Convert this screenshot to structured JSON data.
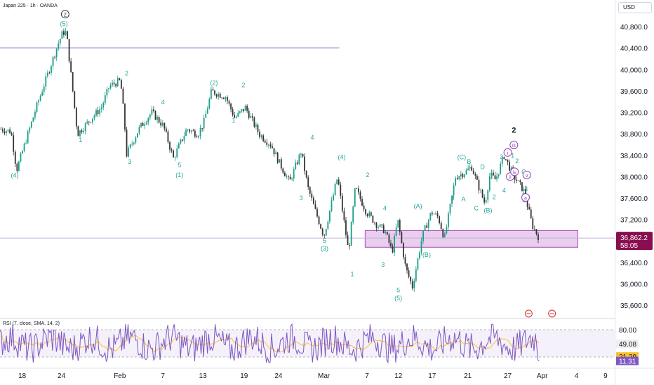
{
  "header": {
    "symbol_title": "Japan 225 · 1h · OANDA",
    "currency": "USD"
  },
  "rsi_header": {
    "title": "RSI (7, close, SMA, 14, 2)"
  },
  "chart_data": [
    {
      "type": "candlestick",
      "ylim": [
        35400,
        41200
      ],
      "price_ticks": [
        "40,800.0",
        "40,400.0",
        "40,000.0",
        "39,600.0",
        "39,200.0",
        "38,800.0",
        "38,400.0",
        "38,000.0",
        "37,600.0",
        "37,200.0",
        "36,400.0",
        "36,000.0",
        "35,600.0"
      ],
      "price_tick_values": [
        40800,
        40400,
        40000,
        39600,
        39200,
        38800,
        38400,
        38000,
        37600,
        37200,
        36400,
        36000,
        35600
      ],
      "time_labels": [
        "18",
        "24",
        "Feb",
        "7",
        "13",
        "19",
        "24",
        "Mar",
        "7",
        "12",
        "17",
        "21",
        "27",
        "Apr",
        "4",
        "9"
      ],
      "last_price": {
        "label": "36,862.2",
        "value": 36862.2,
        "countdown": "58:05"
      },
      "resistance_line": 40410,
      "demand_zone": [
        36690,
        37000
      ],
      "price_path": [
        [
          0,
          38900
        ],
        [
          0.018,
          38850
        ],
        [
          0.027,
          38130
        ],
        [
          0.059,
          39300
        ],
        [
          0.086,
          40200
        ],
        [
          0.095,
          40500
        ],
        [
          0.102,
          40700
        ],
        [
          0.108,
          40700
        ],
        [
          0.126,
          38800
        ],
        [
          0.149,
          39100
        ],
        [
          0.165,
          39300
        ],
        [
          0.178,
          39700
        ],
        [
          0.196,
          39800
        ],
        [
          0.202,
          39100
        ],
        [
          0.206,
          38420
        ],
        [
          0.226,
          38900
        ],
        [
          0.247,
          39210
        ],
        [
          0.266,
          38950
        ],
        [
          0.282,
          38350
        ],
        [
          0.304,
          38900
        ],
        [
          0.322,
          38800
        ],
        [
          0.331,
          39000
        ],
        [
          0.344,
          39600
        ],
        [
          0.367,
          39500
        ],
        [
          0.382,
          39100
        ],
        [
          0.399,
          39300
        ],
        [
          0.422,
          38800
        ],
        [
          0.441,
          38600
        ],
        [
          0.453,
          38300
        ],
        [
          0.471,
          37900
        ],
        [
          0.49,
          38480
        ],
        [
          0.501,
          37800
        ],
        [
          0.512,
          37400
        ],
        [
          0.527,
          36900
        ],
        [
          0.549,
          38000
        ],
        [
          0.567,
          36600
        ],
        [
          0.578,
          37800
        ],
        [
          0.596,
          37350
        ],
        [
          0.614,
          37100
        ],
        [
          0.626,
          37000
        ],
        [
          0.638,
          36600
        ],
        [
          0.647,
          37200
        ],
        [
          0.66,
          36300
        ],
        [
          0.671,
          35950
        ],
        [
          0.687,
          36900
        ],
        [
          0.702,
          37350
        ],
        [
          0.713,
          37250
        ],
        [
          0.723,
          36850
        ],
        [
          0.741,
          38000
        ],
        [
          0.758,
          38100
        ],
        [
          0.767,
          38200
        ],
        [
          0.776,
          37900
        ],
        [
          0.789,
          37500
        ],
        [
          0.797,
          38050
        ],
        [
          0.806,
          37950
        ],
        [
          0.82,
          38400
        ],
        [
          0.828,
          38200
        ],
        [
          0.836,
          38010
        ],
        [
          0.852,
          37750
        ],
        [
          0.866,
          37100
        ],
        [
          0.877,
          36860
        ]
      ],
      "wave_labels": [
        {
          "text": "Z",
          "t": 0.106,
          "p": 41000,
          "circled": true
        },
        {
          "text": "(5)",
          "t": 0.104,
          "p": 40820
        },
        {
          "text": "(4)",
          "t": 0.024,
          "p": 37990
        },
        {
          "text": "1",
          "t": 0.131,
          "p": 38650
        },
        {
          "text": "2",
          "t": 0.206,
          "p": 39900
        },
        {
          "text": "3",
          "t": 0.211,
          "p": 38250
        },
        {
          "text": "4",
          "t": 0.265,
          "p": 39360
        },
        {
          "text": "5",
          "t": 0.292,
          "p": 38180
        },
        {
          "text": "(1)",
          "t": 0.292,
          "p": 38000
        },
        {
          "text": "(2)",
          "t": 0.348,
          "p": 39720
        },
        {
          "text": "2",
          "t": 0.396,
          "p": 39680
        },
        {
          "text": "1",
          "t": 0.38,
          "p": 39020
        },
        {
          "text": "4",
          "t": 0.508,
          "p": 38700
        },
        {
          "text": "3",
          "t": 0.49,
          "p": 37570
        },
        {
          "text": "(4)",
          "t": 0.556,
          "p": 38330
        },
        {
          "text": "5",
          "t": 0.528,
          "p": 36770
        },
        {
          "text": "(3)",
          "t": 0.528,
          "p": 36630
        },
        {
          "text": "2",
          "t": 0.598,
          "p": 38000
        },
        {
          "text": "1",
          "t": 0.573,
          "p": 36150
        },
        {
          "text": "4",
          "t": 0.626,
          "p": 37380
        },
        {
          "text": "3",
          "t": 0.623,
          "p": 36330
        },
        {
          "text": "(A)",
          "t": 0.68,
          "p": 37420
        },
        {
          "text": "5",
          "t": 0.648,
          "p": 35850
        },
        {
          "text": "(5)",
          "t": 0.648,
          "p": 35700
        },
        {
          "text": "(B)",
          "t": 0.694,
          "p": 36510
        },
        {
          "text": "(C)",
          "t": 0.751,
          "p": 38330
        },
        {
          "text": "B",
          "t": 0.763,
          "p": 38250
        },
        {
          "text": "D",
          "t": 0.785,
          "p": 38150
        },
        {
          "text": "1",
          "t": 0.8,
          "p": 37980
        },
        {
          "text": "3",
          "t": 0.816,
          "p": 38340
        },
        {
          "text": "4",
          "t": 0.736,
          "p": 37560
        },
        {
          "text": "A",
          "t": 0.754,
          "p": 37550
        },
        {
          "text": "C",
          "t": 0.775,
          "p": 37380
        },
        {
          "text": "2",
          "t": 0.804,
          "p": 37590
        },
        {
          "text": "(B)",
          "t": 0.794,
          "p": 37340
        },
        {
          "text": "4",
          "t": 0.82,
          "p": 37710
        },
        {
          "text": "2",
          "t": 0.836,
          "p": 38830,
          "bold": true
        },
        {
          "text": "iii",
          "t": 0.836,
          "p": 38560,
          "circled": true
        },
        {
          "text": "i",
          "t": 0.826,
          "p": 38420,
          "circled": true
        },
        {
          "text": "ii",
          "t": 0.83,
          "p": 37970,
          "circled": true
        },
        {
          "text": "iv",
          "t": 0.837,
          "p": 38060,
          "circled": true
        },
        {
          "text": "1",
          "t": 0.834,
          "p": 38360
        },
        {
          "text": "2",
          "t": 0.841,
          "p": 38260
        },
        {
          "text": "C",
          "t": 0.852,
          "p": 38060
        },
        {
          "text": "B",
          "t": 0.856,
          "p": 37970
        },
        {
          "text": "v",
          "t": 0.857,
          "p": 38000,
          "circled": true
        },
        {
          "text": "3",
          "t": 0.852,
          "p": 37620
        },
        {
          "text": "4",
          "t": 0.856,
          "p": 37740
        },
        {
          "text": "5",
          "t": 0.852,
          "p": 37530
        },
        {
          "text": "a",
          "t": 0.855,
          "p": 37580,
          "circled": true
        }
      ]
    },
    {
      "type": "line",
      "title": "RSI (7, close, SMA, 14, 2)",
      "ylim": [
        0,
        100
      ],
      "ticks": [
        "80.00",
        "49.08",
        "21.29",
        "11.31"
      ],
      "tick_values": [
        80,
        49.08,
        21.29,
        11.31
      ],
      "bands": [
        80,
        20
      ]
    }
  ],
  "colors": {
    "wave": "#26a69a",
    "wave_highlight": "#8e44ad",
    "resistance": "#9575cd",
    "zone_fill": "#e1bee7",
    "zone_border": "#ab47bc",
    "last_price": "#880e4f",
    "rsi_line": "#7e57c2",
    "rsi_ma": "#fbc02d",
    "axis_text": "#131722"
  }
}
